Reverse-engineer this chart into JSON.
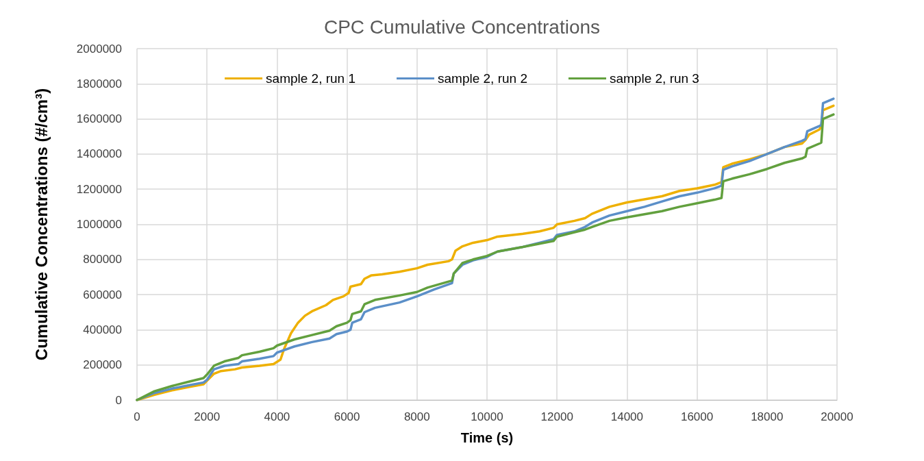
{
  "chart_data": {
    "type": "line",
    "title": "CPC Cumulative Concentrations",
    "xlabel": "Time (s)",
    "ylabel": "Cumulative Concentrations (#/cm³)",
    "xlim": [
      0,
      20000
    ],
    "xticks": [
      0,
      2000,
      4000,
      6000,
      8000,
      10000,
      12000,
      14000,
      16000,
      18000,
      20000
    ],
    "ylim": [
      0,
      2000000
    ],
    "yticks": [
      0,
      200000,
      400000,
      600000,
      800000,
      1000000,
      1200000,
      1400000,
      1600000,
      1800000,
      2000000
    ],
    "grid": true,
    "legend": "top",
    "marker": "none",
    "line_style": "solid",
    "series": [
      {
        "name": "sample 2, run 1",
        "color": "#eeb000",
        "x": [
          0,
          500,
          1000,
          1500,
          1900,
          2000,
          2200,
          2400,
          2800,
          3000,
          3500,
          3900,
          4100,
          4200,
          4400,
          4600,
          4800,
          5000,
          5400,
          5600,
          5900,
          6050,
          6100,
          6400,
          6500,
          6700,
          7000,
          7500,
          8000,
          8300,
          8900,
          9000,
          9100,
          9300,
          9600,
          10000,
          10300,
          11000,
          11500,
          11900,
          12000,
          12500,
          12800,
          13000,
          13500,
          14000,
          15000,
          15500,
          16000,
          16500,
          16700,
          16750,
          17000,
          17500,
          18000,
          18500,
          19000,
          19100,
          19200,
          19500,
          19550,
          19600,
          19900
        ],
        "values": [
          0,
          30000,
          55000,
          75000,
          90000,
          110000,
          150000,
          165000,
          175000,
          185000,
          195000,
          205000,
          230000,
          290000,
          380000,
          440000,
          480000,
          505000,
          540000,
          570000,
          590000,
          610000,
          645000,
          660000,
          690000,
          710000,
          715000,
          730000,
          750000,
          770000,
          790000,
          800000,
          850000,
          875000,
          895000,
          910000,
          930000,
          945000,
          960000,
          980000,
          1000000,
          1020000,
          1035000,
          1060000,
          1100000,
          1125000,
          1160000,
          1190000,
          1205000,
          1225000,
          1240000,
          1325000,
          1345000,
          1370000,
          1400000,
          1440000,
          1460000,
          1480000,
          1510000,
          1540000,
          1560000,
          1650000,
          1675000
        ]
      },
      {
        "name": "sample 2, run 2",
        "color": "#5b8fc8",
        "x": [
          0,
          500,
          1000,
          1500,
          1900,
          2000,
          2200,
          2500,
          2900,
          3000,
          3500,
          3900,
          4000,
          4500,
          5000,
          5500,
          5700,
          6000,
          6100,
          6150,
          6400,
          6500,
          6800,
          7500,
          8000,
          8500,
          9000,
          9050,
          9300,
          9600,
          10000,
          10300,
          11000,
          11500,
          11900,
          12000,
          12500,
          12800,
          13000,
          13500,
          14000,
          14500,
          15000,
          15500,
          16000,
          16500,
          16700,
          16750,
          17000,
          17500,
          18000,
          18500,
          19000,
          19100,
          19150,
          19500,
          19550,
          19600,
          19900
        ],
        "values": [
          0,
          40000,
          65000,
          85000,
          100000,
          115000,
          175000,
          195000,
          205000,
          220000,
          235000,
          250000,
          270000,
          305000,
          330000,
          350000,
          375000,
          390000,
          400000,
          440000,
          460000,
          500000,
          525000,
          555000,
          590000,
          630000,
          665000,
          720000,
          770000,
          795000,
          815000,
          845000,
          870000,
          895000,
          915000,
          940000,
          960000,
          985000,
          1010000,
          1050000,
          1075000,
          1100000,
          1130000,
          1160000,
          1180000,
          1205000,
          1220000,
          1310000,
          1330000,
          1360000,
          1400000,
          1440000,
          1475000,
          1485000,
          1530000,
          1560000,
          1565000,
          1690000,
          1715000
        ]
      },
      {
        "name": "sample 2, run 3",
        "color": "#62a03e",
        "x": [
          0,
          500,
          1000,
          1500,
          1900,
          2000,
          2200,
          2500,
          2900,
          3000,
          3500,
          3900,
          4000,
          4500,
          5000,
          5500,
          5700,
          6000,
          6100,
          6150,
          6400,
          6500,
          6800,
          7500,
          8000,
          8300,
          9000,
          9050,
          9300,
          9600,
          10000,
          10300,
          11000,
          11500,
          11900,
          12000,
          12500,
          12800,
          13000,
          13500,
          14000,
          15000,
          15500,
          16000,
          16500,
          16700,
          16750,
          17000,
          17500,
          18000,
          18500,
          19000,
          19100,
          19150,
          19500,
          19550,
          19600,
          19900
        ],
        "values": [
          0,
          50000,
          80000,
          105000,
          125000,
          145000,
          195000,
          220000,
          240000,
          255000,
          275000,
          295000,
          310000,
          345000,
          370000,
          395000,
          420000,
          440000,
          455000,
          490000,
          505000,
          545000,
          570000,
          595000,
          615000,
          640000,
          680000,
          720000,
          780000,
          800000,
          820000,
          845000,
          870000,
          890000,
          905000,
          930000,
          955000,
          970000,
          985000,
          1020000,
          1040000,
          1075000,
          1100000,
          1120000,
          1140000,
          1150000,
          1245000,
          1260000,
          1285000,
          1315000,
          1350000,
          1375000,
          1385000,
          1430000,
          1460000,
          1465000,
          1600000,
          1625000
        ]
      }
    ]
  }
}
